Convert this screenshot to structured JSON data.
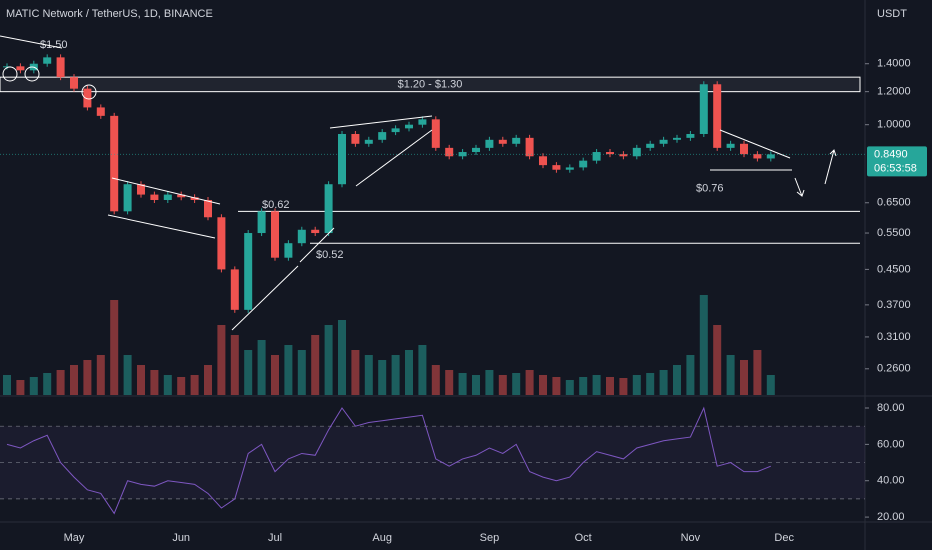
{
  "chart_data": {
    "type": "candlestick",
    "title": "MATIC Network / TetherUS, 1D, BINANCE",
    "currency": "USDT",
    "categories": [
      null,
      null,
      null,
      null,
      null,
      "May",
      null,
      null,
      null,
      null,
      null,
      null,
      null,
      "Jun",
      null,
      null,
      null,
      null,
      null,
      null,
      "Jul",
      null,
      null,
      null,
      null,
      null,
      null,
      null,
      "Aug",
      null,
      null,
      null,
      null,
      null,
      null,
      null,
      "Sep",
      null,
      null,
      null,
      null,
      null,
      null,
      "Oct",
      null,
      null,
      null,
      null,
      null,
      null,
      null,
      "Nov",
      null,
      null,
      null,
      null,
      null,
      null,
      "Dec"
    ],
    "close": [
      1.38,
      1.35,
      1.4,
      1.45,
      1.3,
      1.22,
      1.1,
      1.05,
      0.62,
      0.72,
      0.68,
      0.66,
      0.68,
      0.67,
      0.66,
      0.6,
      0.45,
      0.36,
      0.55,
      0.62,
      0.48,
      0.52,
      0.56,
      0.55,
      0.72,
      0.95,
      0.9,
      0.92,
      0.96,
      0.98,
      1.0,
      1.03,
      0.88,
      0.84,
      0.86,
      0.88,
      0.92,
      0.9,
      0.93,
      0.84,
      0.8,
      0.78,
      0.79,
      0.82,
      0.86,
      0.85,
      0.84,
      0.88,
      0.9,
      0.92,
      0.93,
      0.95,
      1.25,
      0.88,
      0.9,
      0.85,
      0.83,
      0.849,
      null
    ],
    "volume": [
      20,
      15,
      18,
      22,
      25,
      30,
      35,
      40,
      95,
      40,
      30,
      25,
      20,
      18,
      20,
      30,
      70,
      60,
      45,
      55,
      40,
      50,
      45,
      60,
      70,
      75,
      45,
      40,
      35,
      40,
      45,
      50,
      30,
      25,
      22,
      20,
      25,
      20,
      22,
      25,
      20,
      18,
      15,
      18,
      20,
      18,
      17,
      20,
      22,
      25,
      30,
      40,
      100,
      70,
      40,
      35,
      45,
      20,
      null
    ],
    "up_color": "#26a69a",
    "down_color": "#ef5350",
    "log_scale": true,
    "ylim": [
      0.225,
      1.99
    ],
    "yticks": [
      {
        "value": 1.4,
        "label": "1.4000"
      },
      {
        "value": 1.2,
        "label": "1.2000"
      },
      {
        "value": 1.0,
        "label": "1.0000"
      },
      {
        "value": 0.65,
        "label": "0.6500"
      },
      {
        "value": 0.55,
        "label": "0.5500"
      },
      {
        "value": 0.45,
        "label": "0.4500"
      },
      {
        "value": 0.37,
        "label": "0.3700"
      },
      {
        "value": 0.31,
        "label": "0.3100"
      },
      {
        "value": 0.26,
        "label": "0.2600"
      }
    ],
    "last_price": {
      "value": 0.849,
      "label": "0.8490"
    },
    "countdown": "06:53:58",
    "zone": {
      "range": [
        1.2,
        1.3
      ],
      "label": "$1.20 - $1.30"
    },
    "levels": [
      {
        "value": 0.62,
        "label": "$0.62"
      },
      {
        "value": 0.52,
        "label": "$0.52"
      }
    ],
    "annotations": [
      {
        "value": 1.5,
        "label": "$1.50"
      },
      {
        "value": 0.76,
        "label": "$0.76"
      }
    ],
    "rsi": {
      "color": "#7e57c2",
      "values": [
        60,
        58,
        62,
        65,
        50,
        42,
        35,
        33,
        22,
        40,
        38,
        37,
        40,
        39,
        38,
        33,
        25,
        30,
        55,
        60,
        45,
        52,
        55,
        54,
        68,
        80,
        70,
        72,
        73,
        74,
        75,
        76,
        52,
        48,
        52,
        54,
        58,
        55,
        60,
        45,
        42,
        40,
        42,
        50,
        56,
        54,
        52,
        58,
        60,
        62,
        63,
        64,
        80,
        48,
        50,
        45,
        45,
        48,
        null
      ],
      "ylim": [
        17.3,
        85.5
      ],
      "yticks": [
        {
          "value": 80,
          "label": "80.00"
        },
        {
          "value": 60,
          "label": "60.00"
        },
        {
          "value": 40,
          "label": "40.00"
        },
        {
          "value": 20,
          "label": "20.00"
        }
      ],
      "bands": [
        30,
        50,
        70
      ]
    }
  }
}
